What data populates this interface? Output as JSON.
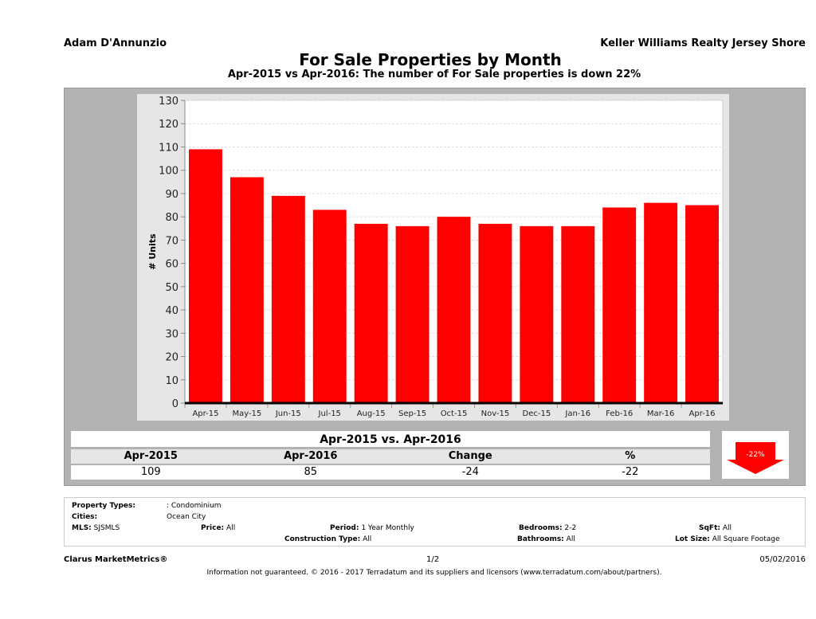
{
  "header": {
    "agent": "Adam D'Annunzio",
    "broker": "Keller Williams Realty Jersey Shore",
    "title": "For Sale Properties by Month",
    "subtitle": "Apr-2015 vs Apr-2016: The number of For Sale  properties is down 22%"
  },
  "chart_data": {
    "type": "bar",
    "title": "For Sale Properties by Month",
    "ylabel": "# Units",
    "xlabel": "",
    "ylim": [
      0,
      130
    ],
    "yticks": [
      0,
      10,
      20,
      30,
      40,
      50,
      60,
      70,
      80,
      90,
      100,
      110,
      120,
      130
    ],
    "grid": true,
    "bar_color": "#ff0000",
    "categories": [
      "Apr-15",
      "May-15",
      "Jun-15",
      "Jul-15",
      "Aug-15",
      "Sep-15",
      "Oct-15",
      "Nov-15",
      "Dec-15",
      "Jan-16",
      "Feb-16",
      "Mar-16",
      "Apr-16"
    ],
    "values": [
      109,
      97,
      89,
      83,
      77,
      76,
      80,
      77,
      76,
      76,
      84,
      86,
      85
    ]
  },
  "summary": {
    "title": "Apr-2015 vs. Apr-2016",
    "headers": [
      "Apr-2015",
      "Apr-2016",
      "Change",
      "%"
    ],
    "values": [
      "109",
      "85",
      "-24",
      "-22"
    ],
    "badge": "-22%",
    "badge_direction": "down",
    "badge_color": "#ff0000"
  },
  "info": {
    "property_types_label": "Property Types:",
    "property_types": ": Condominium",
    "cities_label": "Cities:",
    "cities": "Ocean City",
    "mls_label": "MLS:",
    "mls": "SJSMLS",
    "price_label": "Price:",
    "price": "All",
    "period_label": "Period:",
    "period": "1 Year Monthly",
    "bedrooms_label": "Bedrooms:",
    "bedrooms": "2-2",
    "sqft_label": "SqFt:",
    "sqft": "All",
    "construction_label": "Construction Type:",
    "construction": "All",
    "bathrooms_label": "Bathrooms:",
    "bathrooms": "All",
    "lotsize_label": "Lot Size:",
    "lotsize": "All Square Footage"
  },
  "footer": {
    "brand": "Clarus MarketMetrics®",
    "page": "1/2",
    "date": "05/02/2016",
    "disclaimer": "Information not guaranteed. © 2016 - 2017 Terradatum and its suppliers and licensors (www.terradatum.com/about/partners)."
  }
}
